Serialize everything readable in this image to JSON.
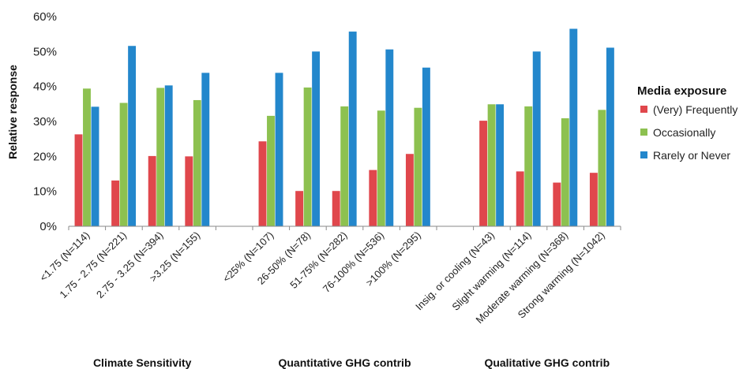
{
  "chart_data": {
    "type": "bar",
    "ylabel": "Relative response",
    "ylim": [
      0,
      60
    ],
    "y_ticks": [
      "0%",
      "10%",
      "20%",
      "30%",
      "40%",
      "50%",
      "60%"
    ],
    "grid": false,
    "legend": {
      "title": "Media exposure",
      "placement": "right"
    },
    "categories": [
      "<1.75 (N=114)",
      "1.75 - 2.75 (N=221)",
      "2.75 - 3.25 (N=394)",
      ">3.25 (N=155)",
      "<25% (N=107)",
      "26-50% (N=78)",
      "51-75% (N=282)",
      "76-100% (N=536)",
      ">100% (N=295)",
      "Insig. or cooling (N=43)",
      "Slight warming (N=114)",
      "Moderate warming (N=368)",
      "Strong warming (N=1042)"
    ],
    "groups": [
      {
        "label": "Climate Sensitivity",
        "categories": [
          0,
          1,
          2,
          3
        ]
      },
      {
        "label": "Quantitative GHG contrib",
        "categories": [
          4,
          5,
          6,
          7,
          8
        ]
      },
      {
        "label": "Qualitative GHG contrib",
        "categories": [
          9,
          10,
          11,
          12
        ]
      }
    ],
    "series": [
      {
        "name": "(Very) Frequently",
        "color": "#e0474c",
        "values": [
          26.3,
          13.1,
          20.1,
          20.0,
          24.3,
          10.1,
          10.1,
          16.1,
          20.7,
          30.2,
          15.7,
          12.5,
          15.3
        ]
      },
      {
        "name": "Occasionally",
        "color": "#8dc150",
        "values": [
          39.4,
          35.3,
          39.6,
          36.1,
          31.6,
          39.7,
          34.3,
          33.1,
          33.9,
          34.9,
          34.3,
          30.9,
          33.3
        ]
      },
      {
        "name": "Rarely or Never",
        "color": "#2387cc",
        "values": [
          34.2,
          51.6,
          40.3,
          43.9,
          43.9,
          50.0,
          55.7,
          50.6,
          45.4,
          34.9,
          50.0,
          56.5,
          51.1
        ]
      }
    ]
  }
}
